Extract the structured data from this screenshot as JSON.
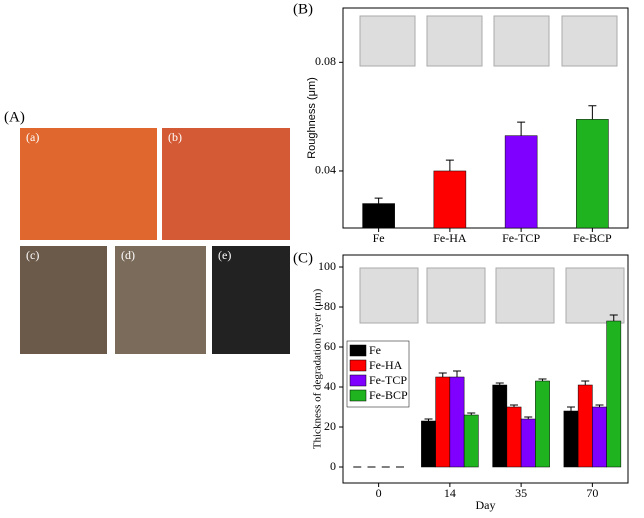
{
  "figure": {
    "panel_labels": [
      "(A)",
      "(a)",
      "(b)",
      "(c)",
      "(d)",
      "(e)"
    ]
  },
  "chart_data": [
    {
      "type": "bar",
      "panel": "(B)",
      "y_label": "Roughness (μm)",
      "categories": [
        "Fe",
        "Fe-HA",
        "Fe-TCP",
        "Fe-BCP"
      ],
      "values": [
        0.028,
        0.04,
        0.053,
        0.059
      ],
      "errors": [
        0.002,
        0.004,
        0.005,
        0.005
      ],
      "colors": [
        "#000000",
        "#ff0000",
        "#7f00ff",
        "#1fb41f"
      ],
      "ylim": [
        0.019,
        0.1
      ],
      "yticks": [
        0.04,
        0.08
      ]
    },
    {
      "type": "grouped_bar",
      "panel": "(C)",
      "x_label": "Day",
      "y_label": "Thickness of degradation layer (μm)",
      "categories": [
        "0",
        "14",
        "35",
        "70"
      ],
      "series": [
        {
          "name": "Fe",
          "color": "#000000",
          "values": [
            0,
            23,
            41,
            28
          ],
          "errors": [
            0,
            1,
            1,
            2
          ]
        },
        {
          "name": "Fe-HA",
          "color": "#ff0000",
          "values": [
            0,
            45,
            30,
            41
          ],
          "errors": [
            0,
            2,
            1,
            2
          ]
        },
        {
          "name": "Fe-TCP",
          "color": "#7f00ff",
          "values": [
            0,
            45,
            24,
            30
          ],
          "errors": [
            0,
            3,
            1,
            1
          ]
        },
        {
          "name": "Fe-BCP",
          "color": "#1fb41f",
          "values": [
            0,
            26,
            43,
            73
          ],
          "errors": [
            0,
            1,
            1,
            3
          ]
        }
      ],
      "ylim": [
        -8,
        106
      ],
      "yticks": [
        0,
        20,
        40,
        60,
        80,
        100
      ],
      "legend": "upper left"
    }
  ]
}
